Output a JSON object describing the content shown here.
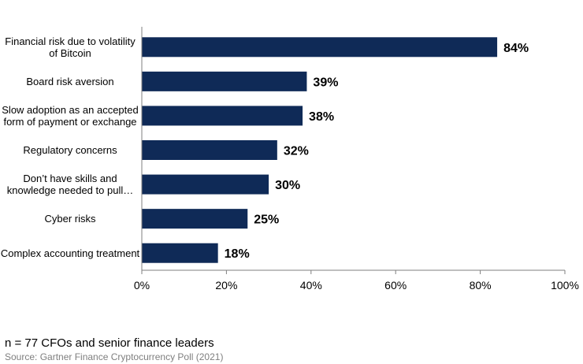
{
  "chart_data": {
    "type": "bar",
    "orientation": "horizontal",
    "categories": [
      "Financial risk due to volatility of Bitcoin",
      "Board risk aversion",
      "Slow adoption as an accepted form of payment or exchange",
      "Regulatory concerns",
      "Don’t have skills and knowledge needed to pull…",
      "Cyber risks",
      "Complex accounting treatment"
    ],
    "values": [
      84,
      39,
      38,
      32,
      30,
      25,
      18
    ],
    "data_labels": [
      "84%",
      "39%",
      "38%",
      "32%",
      "30%",
      "25%",
      "18%"
    ],
    "xlim": [
      0,
      100
    ],
    "x_ticks": [
      0,
      20,
      40,
      60,
      80,
      100
    ],
    "x_tick_labels": [
      "0%",
      "20%",
      "40%",
      "60%",
      "80%",
      "100%"
    ],
    "bar_color": "#0f2a57",
    "grid": false,
    "legend": "none"
  },
  "footnote": "n = 77 CFOs and senior finance leaders",
  "source": "Source: Gartner Finance Cryptocurrency Poll (2021)"
}
